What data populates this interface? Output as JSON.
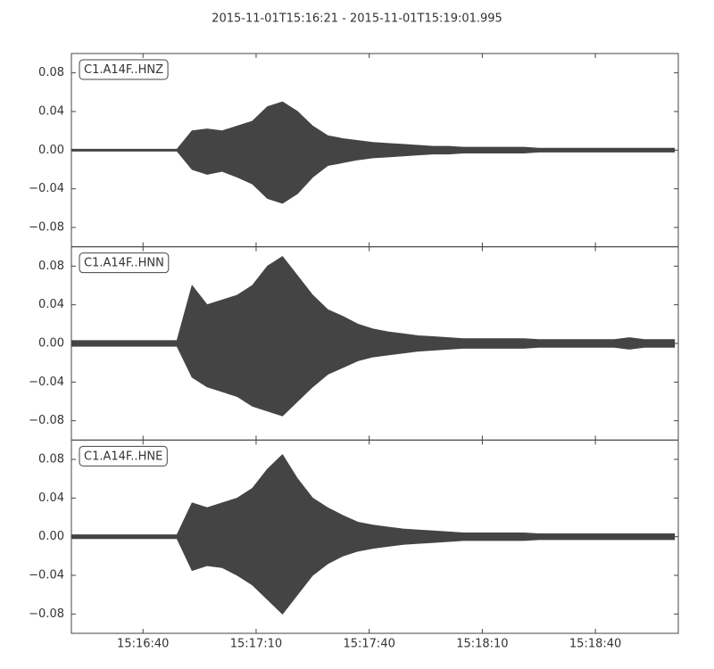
{
  "chart_data": {
    "type": "waveform",
    "title": "2015-11-01T15:16:21  -  2015-11-01T15:19:01.995",
    "xlim": [
      0,
      160.995
    ],
    "xticks": [
      {
        "value": 19,
        "label": "15:16:40"
      },
      {
        "value": 49,
        "label": "15:17:10"
      },
      {
        "value": 79,
        "label": "15:17:40"
      },
      {
        "value": 109,
        "label": "15:18:10"
      },
      {
        "value": 139,
        "label": "15:18:40"
      }
    ],
    "ylim": [
      -0.1,
      0.1
    ],
    "yticks": [
      {
        "value": -0.08,
        "label": "−0.08"
      },
      {
        "value": -0.04,
        "label": "−0.04"
      },
      {
        "value": 0,
        "label": "0.00"
      },
      {
        "value": 0.04,
        "label": "0.04"
      },
      {
        "value": 0.08,
        "label": "0.08"
      }
    ],
    "x": [
      0,
      4,
      8,
      12,
      16,
      20,
      24,
      28,
      32,
      36,
      40,
      44,
      48,
      52,
      56,
      60,
      64,
      68,
      72,
      76,
      80,
      84,
      88,
      92,
      96,
      100,
      104,
      108,
      112,
      116,
      120,
      124,
      128,
      132,
      136,
      140,
      144,
      148,
      152,
      156,
      160
    ],
    "panels": [
      {
        "label": "C1.A14F..HNZ",
        "series": [
          {
            "color": "#444444",
            "values": [
              0.001,
              0.001,
              0.001,
              0.001,
              0.001,
              0.001,
              0.001,
              0.001,
              0.02,
              0.022,
              0.02,
              0.025,
              0.03,
              0.045,
              0.05,
              0.04,
              0.025,
              0.015,
              0.012,
              0.01,
              0.008,
              0.007,
              0.006,
              0.005,
              0.004,
              0.004,
              0.003,
              0.003,
              0.003,
              0.003,
              0.003,
              0.002,
              0.002,
              0.002,
              0.002,
              0.002,
              0.002,
              0.002,
              0.002,
              0.002,
              0.002
            ]
          },
          {
            "color": "#444444",
            "values": [
              -0.001,
              -0.001,
              -0.001,
              -0.001,
              -0.001,
              -0.001,
              -0.001,
              -0.001,
              -0.02,
              -0.025,
              -0.022,
              -0.028,
              -0.035,
              -0.05,
              -0.055,
              -0.045,
              -0.028,
              -0.016,
              -0.013,
              -0.01,
              -0.008,
              -0.007,
              -0.006,
              -0.005,
              -0.004,
              -0.004,
              -0.003,
              -0.003,
              -0.003,
              -0.003,
              -0.003,
              -0.002,
              -0.002,
              -0.002,
              -0.002,
              -0.002,
              -0.002,
              -0.002,
              -0.002,
              -0.002,
              -0.002
            ]
          }
        ]
      },
      {
        "label": "C1.A14F..HNN",
        "series": [
          {
            "color": "#444444",
            "values": [
              0.003,
              0.003,
              0.003,
              0.003,
              0.003,
              0.003,
              0.003,
              0.003,
              0.06,
              0.04,
              0.045,
              0.05,
              0.06,
              0.08,
              0.09,
              0.07,
              0.05,
              0.035,
              0.028,
              0.02,
              0.015,
              0.012,
              0.01,
              0.008,
              0.007,
              0.006,
              0.005,
              0.005,
              0.005,
              0.005,
              0.005,
              0.004,
              0.004,
              0.004,
              0.004,
              0.004,
              0.004,
              0.006,
              0.004,
              0.004,
              0.004
            ]
          },
          {
            "color": "#444444",
            "values": [
              -0.003,
              -0.003,
              -0.003,
              -0.003,
              -0.003,
              -0.003,
              -0.003,
              -0.003,
              -0.035,
              -0.045,
              -0.05,
              -0.055,
              -0.065,
              -0.07,
              -0.075,
              -0.06,
              -0.045,
              -0.032,
              -0.025,
              -0.018,
              -0.014,
              -0.012,
              -0.01,
              -0.008,
              -0.007,
              -0.006,
              -0.005,
              -0.005,
              -0.005,
              -0.005,
              -0.005,
              -0.004,
              -0.004,
              -0.004,
              -0.004,
              -0.004,
              -0.004,
              -0.006,
              -0.004,
              -0.004,
              -0.004
            ]
          }
        ]
      },
      {
        "label": "C1.A14F..HNE",
        "series": [
          {
            "color": "#444444",
            "values": [
              0.002,
              0.002,
              0.002,
              0.002,
              0.002,
              0.002,
              0.002,
              0.002,
              0.035,
              0.03,
              0.035,
              0.04,
              0.05,
              0.07,
              0.085,
              0.06,
              0.04,
              0.03,
              0.022,
              0.015,
              0.012,
              0.01,
              0.008,
              0.007,
              0.006,
              0.005,
              0.004,
              0.004,
              0.004,
              0.004,
              0.004,
              0.003,
              0.003,
              0.003,
              0.003,
              0.003,
              0.003,
              0.003,
              0.003,
              0.003,
              0.003
            ]
          },
          {
            "color": "#444444",
            "values": [
              -0.002,
              -0.002,
              -0.002,
              -0.002,
              -0.002,
              -0.002,
              -0.002,
              -0.002,
              -0.035,
              -0.03,
              -0.032,
              -0.04,
              -0.05,
              -0.065,
              -0.08,
              -0.06,
              -0.04,
              -0.028,
              -0.02,
              -0.015,
              -0.012,
              -0.01,
              -0.008,
              -0.007,
              -0.006,
              -0.005,
              -0.004,
              -0.004,
              -0.004,
              -0.004,
              -0.004,
              -0.003,
              -0.003,
              -0.003,
              -0.003,
              -0.003,
              -0.003,
              -0.003,
              -0.003,
              -0.003,
              -0.003
            ]
          }
        ]
      }
    ]
  }
}
